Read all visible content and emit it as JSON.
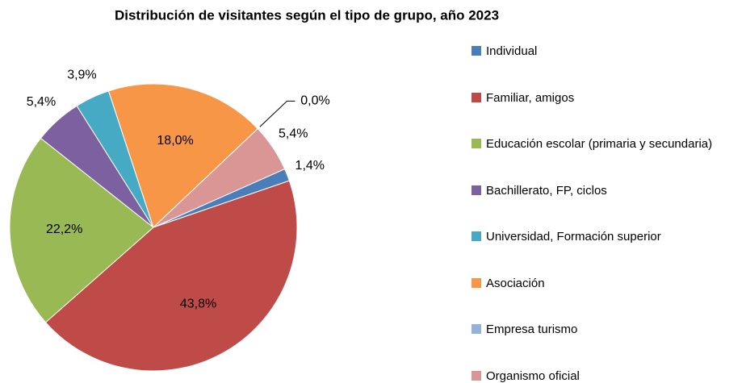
{
  "chart_data": {
    "type": "pie",
    "title": "Distribución de visitantes según el tipo de grupo, año 2023",
    "categories": [
      "Individual",
      "Familiar, amigos",
      "Educación escolar (primaria y secundaria)",
      "Bachillerato, FP, ciclos",
      "Universidad, Formación superior",
      "Asociación",
      "Empresa turismo",
      "Organismo oficial"
    ],
    "values": [
      1.4,
      43.8,
      22.2,
      5.4,
      3.9,
      18.0,
      0.0,
      5.4
    ],
    "value_labels": [
      "1,4%",
      "43,8%",
      "22,2%",
      "5,4%",
      "3,9%",
      "18,0%",
      "0,0%",
      "5,4%"
    ],
    "colors": [
      "#4a7ebb",
      "#be4b48",
      "#98b954",
      "#7d60a0",
      "#46aac5",
      "#f79646",
      "#95b3d7",
      "#da9694"
    ],
    "legend": "right"
  }
}
